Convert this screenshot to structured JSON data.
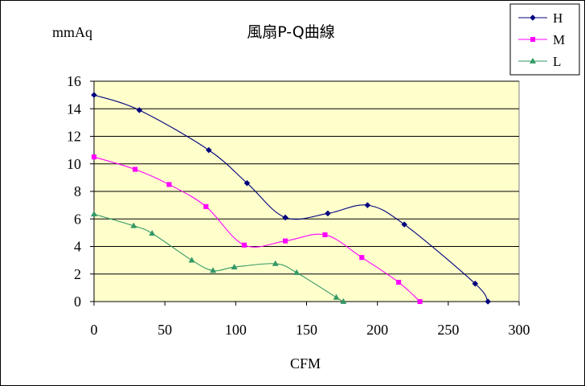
{
  "chart_data": {
    "type": "line",
    "title": "風扇P-Q曲線",
    "ylabel": "mmAq",
    "xlabel": "CFM",
    "xlim": [
      0,
      300
    ],
    "ylim": [
      0,
      16
    ],
    "x_ticks": [
      0,
      50,
      100,
      150,
      200,
      250,
      300
    ],
    "y_ticks": [
      0,
      2,
      4,
      6,
      8,
      10,
      12,
      14,
      16
    ],
    "grid": "horizontal",
    "legend_position": "top-right",
    "plot_background": "#FFFFCC",
    "series": [
      {
        "name": "H",
        "color": "#000080",
        "marker": "diamond",
        "points": [
          {
            "x": 0,
            "y": 15.0
          },
          {
            "x": 32,
            "y": 13.9
          },
          {
            "x": 81,
            "y": 11.0
          },
          {
            "x": 108,
            "y": 8.6
          },
          {
            "x": 135,
            "y": 6.1
          },
          {
            "x": 165,
            "y": 6.4
          },
          {
            "x": 193,
            "y": 7.0
          },
          {
            "x": 219,
            "y": 5.6
          },
          {
            "x": 269,
            "y": 1.3
          },
          {
            "x": 278,
            "y": 0.0
          }
        ]
      },
      {
        "name": "M",
        "color": "#FF00FF",
        "marker": "square",
        "points": [
          {
            "x": 0,
            "y": 10.5
          },
          {
            "x": 29,
            "y": 9.6
          },
          {
            "x": 53,
            "y": 8.5
          },
          {
            "x": 79,
            "y": 6.9
          },
          {
            "x": 106,
            "y": 4.1
          },
          {
            "x": 135,
            "y": 4.4
          },
          {
            "x": 163,
            "y": 4.85
          },
          {
            "x": 189,
            "y": 3.2
          },
          {
            "x": 215,
            "y": 1.4
          },
          {
            "x": 230,
            "y": 0.0
          }
        ]
      },
      {
        "name": "L",
        "color": "#339966",
        "marker": "triangle",
        "points": [
          {
            "x": 0,
            "y": 6.35
          },
          {
            "x": 28,
            "y": 5.5
          },
          {
            "x": 41,
            "y": 4.95
          },
          {
            "x": 69,
            "y": 3.0
          },
          {
            "x": 84,
            "y": 2.25
          },
          {
            "x": 99,
            "y": 2.5
          },
          {
            "x": 128,
            "y": 2.75
          },
          {
            "x": 143,
            "y": 2.1
          },
          {
            "x": 171,
            "y": 0.3
          },
          {
            "x": 176,
            "y": 0.0
          }
        ]
      }
    ]
  }
}
